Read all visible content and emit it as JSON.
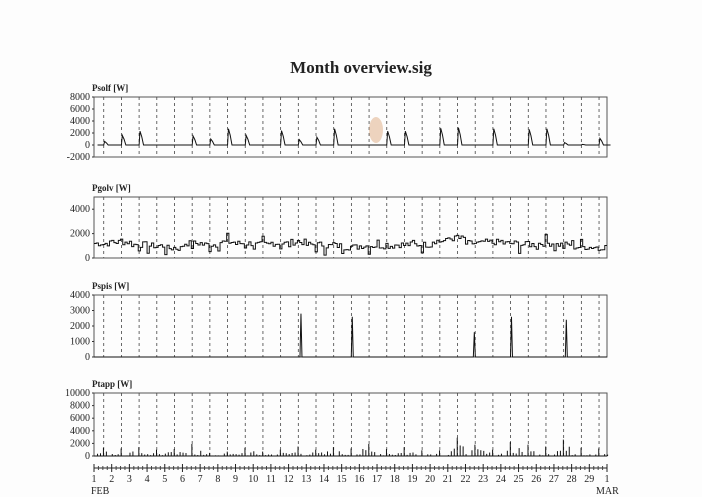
{
  "title": "Month overview.sig",
  "chart_data": [
    {
      "type": "line",
      "ylabel": "Psolf [W]",
      "ylim": [
        -2000,
        8000
      ],
      "yticks": [
        8000,
        6000,
        4000,
        2000,
        0,
        -2000
      ],
      "daily_peak": [
        600,
        1600,
        2300,
        0,
        0,
        1500,
        1000,
        2700,
        1600,
        0,
        2400,
        900,
        1300,
        2700,
        0,
        0,
        2300,
        2300,
        0,
        2800,
        2900,
        0,
        2700,
        0,
        2600,
        2700,
        400,
        100,
        1100
      ]
    },
    {
      "type": "line",
      "ylabel": "Pgolv [W]",
      "ylim": [
        0,
        5000
      ],
      "yticks": [
        4000,
        2000,
        0
      ],
      "daily_level": [
        1200,
        1300,
        1100,
        1000,
        800,
        1200,
        1100,
        1300,
        1200,
        1100,
        1200,
        1300,
        1100,
        1000,
        900,
        1000,
        1000,
        1100,
        1100,
        1400,
        1600,
        1200,
        1300,
        1200,
        1100,
        1200,
        1100,
        900,
        900
      ]
    },
    {
      "type": "line",
      "ylabel": "Pspis [W]",
      "ylim": [
        0,
        4000
      ],
      "yticks": [
        4000,
        3000,
        2000,
        1000,
        0
      ],
      "spikes": [
        {
          "day": 12.7,
          "value": 2800
        },
        {
          "day": 15.6,
          "value": 2600
        },
        {
          "day": 22.5,
          "value": 1600
        },
        {
          "day": 24.6,
          "value": 2600
        },
        {
          "day": 27.7,
          "value": 2400
        }
      ]
    },
    {
      "type": "line",
      "ylabel": "Ptapp [W]",
      "ylim": [
        0,
        10000
      ],
      "yticks": [
        10000,
        8000,
        6000,
        4000,
        2000,
        0
      ],
      "daily_peak": [
        1300,
        1200,
        1400,
        1000,
        1100,
        1900,
        500,
        700,
        1300,
        700,
        1000,
        1500,
        1000,
        1400,
        1200,
        1900,
        1100,
        1400,
        900,
        900,
        2900,
        1800,
        1000,
        2200,
        1800,
        1500,
        2600,
        1300,
        1200
      ]
    }
  ],
  "x_axis": {
    "ticks": [
      "1",
      "2",
      "3",
      "4",
      "5",
      "6",
      "7",
      "8",
      "9",
      "10",
      "11",
      "12",
      "13",
      "14",
      "15",
      "16",
      "17",
      "18",
      "19",
      "20",
      "21",
      "22",
      "23",
      "24",
      "25",
      "26",
      "27",
      "28",
      "29",
      "1"
    ],
    "start_month": "FEB",
    "end_month": "MAR"
  }
}
